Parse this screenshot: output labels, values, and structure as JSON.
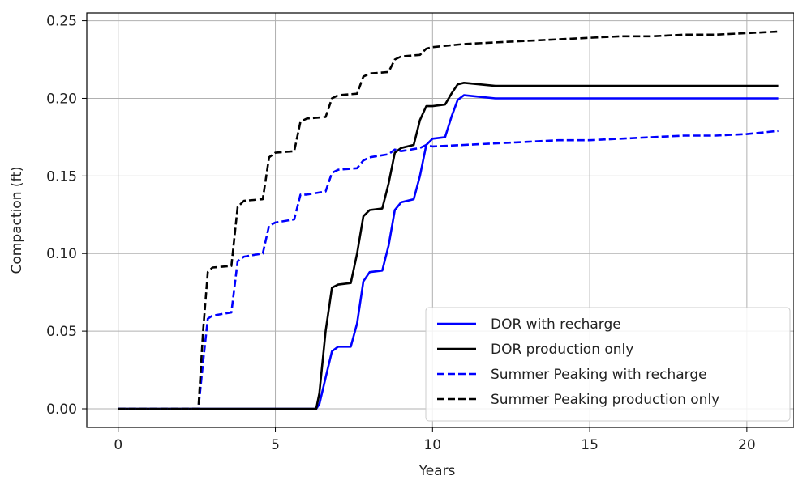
{
  "chart_data": {
    "type": "line",
    "xlabel": "Years",
    "ylabel": "Compaction (ft)",
    "xlim": [
      -1,
      21.5
    ],
    "ylim": [
      -0.012,
      0.255
    ],
    "xticks": [
      0,
      5,
      10,
      15,
      20
    ],
    "xtick_labels": [
      "0",
      "5",
      "10",
      "15",
      "20"
    ],
    "yticks": [
      0.0,
      0.05,
      0.1,
      0.15,
      0.2,
      0.25
    ],
    "ytick_labels": [
      "0.00",
      "0.05",
      "0.10",
      "0.15",
      "0.20",
      "0.25"
    ],
    "grid": true,
    "legend_position": "lower-right",
    "series": [
      {
        "name": "DOR with recharge",
        "color": "#0000ff",
        "style": "solid",
        "x": [
          0,
          6.3,
          6.4,
          6.6,
          6.8,
          7.0,
          7.4,
          7.6,
          7.8,
          8.0,
          8.4,
          8.6,
          8.8,
          9.0,
          9.4,
          9.6,
          9.8,
          10.0,
          10.4,
          10.6,
          10.8,
          11.0,
          11.5,
          12.0,
          15.0,
          21.0
        ],
        "y": [
          0.0,
          0.0,
          0.003,
          0.02,
          0.037,
          0.04,
          0.04,
          0.055,
          0.082,
          0.088,
          0.089,
          0.105,
          0.128,
          0.133,
          0.135,
          0.15,
          0.17,
          0.174,
          0.175,
          0.188,
          0.199,
          0.202,
          0.201,
          0.2,
          0.2,
          0.2
        ]
      },
      {
        "name": "DOR production only",
        "color": "#000000",
        "style": "solid",
        "x": [
          0,
          6.3,
          6.4,
          6.6,
          6.8,
          7.0,
          7.4,
          7.6,
          7.8,
          8.0,
          8.4,
          8.6,
          8.8,
          9.0,
          9.4,
          9.6,
          9.8,
          10.0,
          10.4,
          10.6,
          10.8,
          11.0,
          11.5,
          12.0,
          15.0,
          21.0
        ],
        "y": [
          0.0,
          0.0,
          0.01,
          0.05,
          0.078,
          0.08,
          0.081,
          0.1,
          0.124,
          0.128,
          0.129,
          0.145,
          0.165,
          0.168,
          0.17,
          0.186,
          0.195,
          0.195,
          0.196,
          0.203,
          0.209,
          0.21,
          0.209,
          0.208,
          0.208,
          0.208
        ]
      },
      {
        "name": "Summer Peaking with recharge",
        "color": "#0000ff",
        "style": "dashed",
        "x": [
          0,
          2.55,
          2.7,
          2.85,
          3.0,
          3.6,
          3.8,
          4.0,
          4.6,
          4.8,
          5.0,
          5.6,
          5.8,
          6.0,
          6.6,
          6.8,
          7.0,
          7.6,
          7.8,
          8.0,
          8.6,
          8.8,
          9.0,
          9.6,
          9.8,
          10.0,
          11.0,
          12.0,
          13.0,
          14.0,
          15.0,
          16.0,
          17.0,
          18.0,
          19.0,
          20.0,
          21.0
        ],
        "y": [
          0.0,
          0.0,
          0.03,
          0.058,
          0.06,
          0.062,
          0.095,
          0.098,
          0.1,
          0.118,
          0.12,
          0.122,
          0.138,
          0.138,
          0.14,
          0.152,
          0.154,
          0.155,
          0.16,
          0.162,
          0.164,
          0.167,
          0.166,
          0.168,
          0.17,
          0.169,
          0.17,
          0.171,
          0.172,
          0.173,
          0.173,
          0.174,
          0.175,
          0.176,
          0.176,
          0.177,
          0.179
        ]
      },
      {
        "name": "Summer Peaking production only",
        "color": "#000000",
        "style": "dashed",
        "x": [
          0,
          2.55,
          2.7,
          2.85,
          3.0,
          3.6,
          3.8,
          4.0,
          4.6,
          4.8,
          5.0,
          5.6,
          5.8,
          6.0,
          6.6,
          6.8,
          7.0,
          7.6,
          7.8,
          8.0,
          8.6,
          8.8,
          9.0,
          9.6,
          9.8,
          10.0,
          11.0,
          12.0,
          13.0,
          14.0,
          15.0,
          16.0,
          17.0,
          18.0,
          19.0,
          20.0,
          21.0
        ],
        "y": [
          0.0,
          0.0,
          0.05,
          0.088,
          0.091,
          0.092,
          0.13,
          0.134,
          0.135,
          0.162,
          0.165,
          0.166,
          0.185,
          0.187,
          0.188,
          0.2,
          0.202,
          0.203,
          0.214,
          0.216,
          0.217,
          0.225,
          0.227,
          0.228,
          0.232,
          0.233,
          0.235,
          0.236,
          0.237,
          0.238,
          0.239,
          0.24,
          0.24,
          0.241,
          0.241,
          0.242,
          0.243
        ]
      }
    ]
  }
}
